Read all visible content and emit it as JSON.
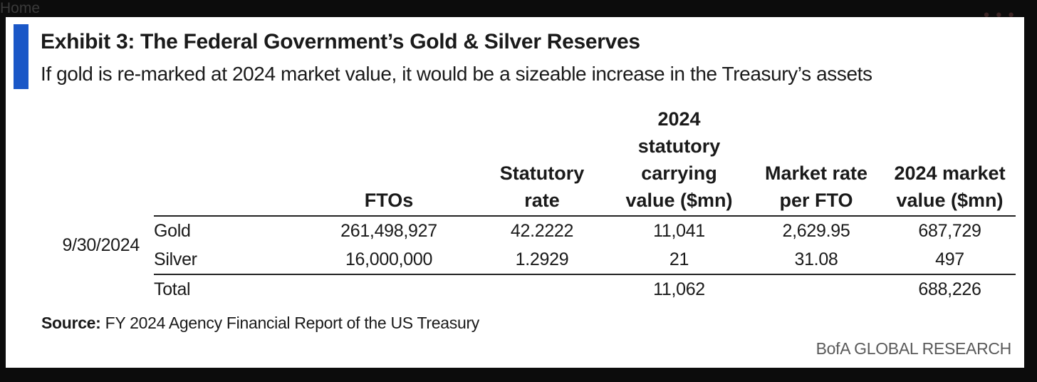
{
  "background": {
    "home_text": "Home"
  },
  "exhibit": {
    "title": "Exhibit 3: The Federal Government’s Gold & Silver Reserves",
    "subtitle": "If gold is re-marked at 2024 market value, it would be a sizeable increase in the Treasury’s assets",
    "accent_color": "#1a57c7",
    "source_label": "Source:",
    "source_text": "FY 2024 Agency Financial Report of the US Treasury",
    "brand": "BofA GLOBAL RESEARCH"
  },
  "chart_data": {
    "type": "table",
    "columns": [
      "FTOs",
      "Statutory\nrate",
      "2024\nstatutory\ncarrying\nvalue ($mn)",
      "Market rate\nper FTO",
      "2024 market\nvalue ($mn)"
    ],
    "date": "9/30/2024",
    "rows": [
      {
        "label": "Gold",
        "values": [
          "261,498,927",
          "42.2222",
          "11,041",
          "2,629.95",
          "687,729"
        ]
      },
      {
        "label": "Silver",
        "values": [
          "16,000,000",
          "1.2929",
          "21",
          "31.08",
          "497"
        ]
      },
      {
        "label": "Total",
        "values": [
          "",
          "",
          "11,062",
          "",
          "688,226"
        ]
      }
    ]
  }
}
